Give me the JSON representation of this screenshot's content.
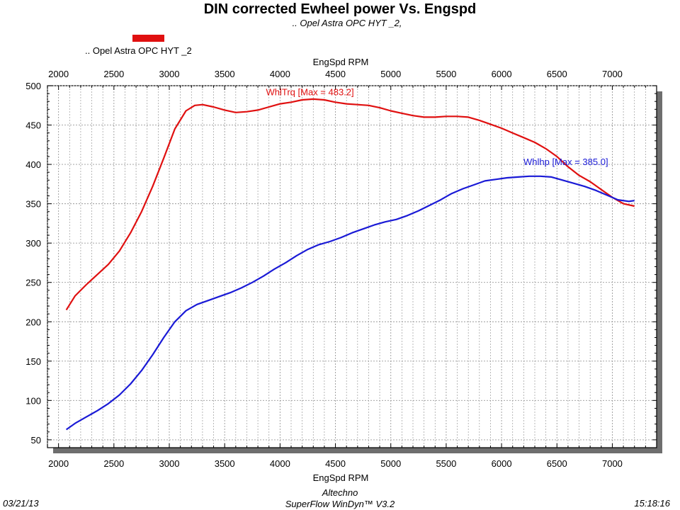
{
  "header": {
    "title": "DIN corrected Ewheel power Vs. Engspd",
    "subtitle": ".. Opel Astra OPC HYT _2,"
  },
  "legend": {
    "label": ".. Opel Astra OPC HYT _2",
    "color": "#e01010"
  },
  "footer": {
    "date": "03/21/13",
    "company": "Altechno",
    "software": "SuperFlow WinDyn™ V3.2",
    "time": "15:18:16"
  },
  "chart_data": {
    "type": "line",
    "title": "DIN corrected Ewheel power Vs. Engspd",
    "xlabel_top": "EngSpd RPM",
    "xlabel": "EngSpd RPM",
    "ylabel": "",
    "xlim": [
      1900,
      7400
    ],
    "ylim": [
      40,
      500
    ],
    "xticks": [
      2000,
      2500,
      3000,
      3500,
      4000,
      4500,
      5000,
      5500,
      6000,
      6500,
      7000
    ],
    "yticks": [
      50,
      100,
      150,
      200,
      250,
      300,
      350,
      400,
      450,
      500
    ],
    "grid": true,
    "series": [
      {
        "name": "WhlTrq",
        "annotation": "WhlTrq [Max = 483.2]",
        "color": "#e01010",
        "x": [
          2070,
          2150,
          2250,
          2350,
          2450,
          2550,
          2650,
          2750,
          2850,
          2950,
          3050,
          3150,
          3230,
          3300,
          3400,
          3500,
          3600,
          3700,
          3800,
          3900,
          4000,
          4100,
          4200,
          4300,
          4400,
          4500,
          4600,
          4700,
          4800,
          4900,
          5000,
          5100,
          5200,
          5300,
          5400,
          5500,
          5600,
          5700,
          5800,
          5900,
          6000,
          6100,
          6200,
          6300,
          6400,
          6500,
          6600,
          6700,
          6800,
          6900,
          7000,
          7100,
          7200
        ],
        "values": [
          215,
          233,
          247,
          260,
          273,
          290,
          313,
          340,
          372,
          408,
          445,
          468,
          475,
          476,
          473,
          469,
          466,
          467,
          469,
          473,
          477,
          479,
          482,
          483,
          482,
          479,
          477,
          476,
          475,
          472,
          468,
          465,
          462,
          460,
          460,
          461,
          461,
          460,
          456,
          451,
          446,
          440,
          434,
          428,
          420,
          410,
          397,
          386,
          378,
          368,
          358,
          350,
          347
        ]
      },
      {
        "name": "Whlhp",
        "annotation": "Whlhp  [Max = 385.0]",
        "color": "#1a1ad6",
        "x": [
          2070,
          2150,
          2250,
          2350,
          2450,
          2550,
          2650,
          2750,
          2850,
          2950,
          3050,
          3150,
          3250,
          3350,
          3450,
          3550,
          3650,
          3750,
          3850,
          3950,
          4050,
          4150,
          4250,
          4350,
          4450,
          4550,
          4650,
          4750,
          4850,
          4950,
          5050,
          5150,
          5250,
          5350,
          5450,
          5550,
          5650,
          5750,
          5850,
          5950,
          6050,
          6150,
          6250,
          6350,
          6450,
          6550,
          6650,
          6750,
          6850,
          6950,
          7050,
          7150,
          7200
        ],
        "values": [
          63,
          71,
          79,
          87,
          96,
          107,
          121,
          138,
          158,
          180,
          200,
          214,
          222,
          227,
          232,
          237,
          243,
          250,
          258,
          267,
          275,
          284,
          292,
          298,
          302,
          307,
          313,
          318,
          323,
          327,
          330,
          335,
          341,
          348,
          355,
          363,
          369,
          374,
          379,
          381,
          383,
          384,
          385,
          385,
          384,
          380,
          376,
          372,
          367,
          361,
          355,
          353,
          354
        ]
      }
    ]
  }
}
